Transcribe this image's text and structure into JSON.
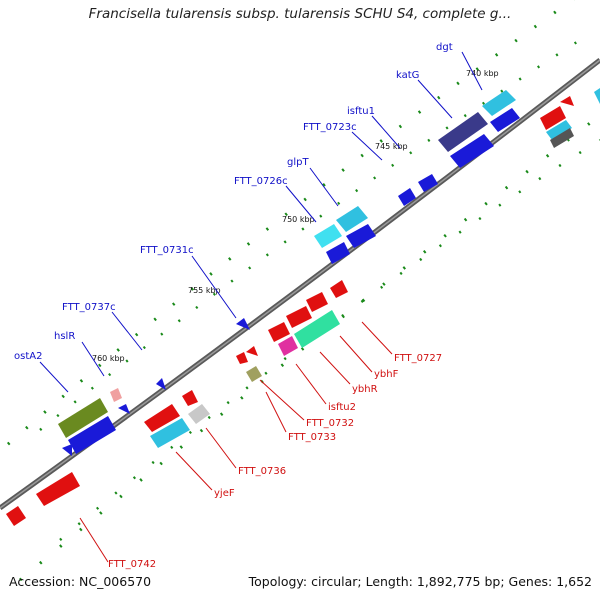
{
  "title": "Francisella tularensis subsp. tularensis SCHU S4, complete g...",
  "footer": {
    "accession": "Accession: NC_006570",
    "stats": "Topology: circular; Length: 1,892,775 bp; Genes: 1,652"
  },
  "ticks": [
    "740 kbp",
    "745 kbp",
    "750 kbp",
    "755 kbp",
    "760 kbp"
  ],
  "genes_outer": [
    "dgt",
    "katG",
    "isftu1",
    "FTT_0723c",
    "glpT",
    "FTT_0726c",
    "FTT_0731c",
    "FTT_0737c",
    "hslR",
    "ostA2"
  ],
  "genes_inner": [
    "FTT_0727",
    "ybhF",
    "ybhR",
    "isftu2",
    "FTT_0732",
    "FTT_0733",
    "FTT_0736",
    "yjeF",
    "FTT_0742"
  ],
  "colors": {
    "backbone": "#555555",
    "forward_label": "#1010c8",
    "reverse_label": "#d01010",
    "blue": "#1a1ad8",
    "navy": "#3a3a8a",
    "cyan": "#30c0e0",
    "red": "#e01010",
    "olive": "#6a8a20",
    "green_teal": "#30e0a0",
    "magenta": "#e030a0",
    "pink": "#f0a0a0",
    "grey": "#c8c8c8",
    "khaki": "#a0a060",
    "tick": "#1a8a1a"
  }
}
